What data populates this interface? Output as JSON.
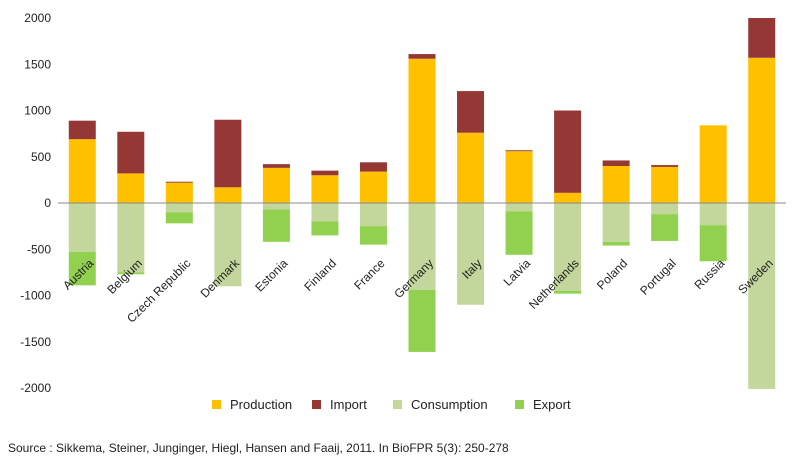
{
  "chart_data": {
    "type": "bar",
    "stacked": true,
    "title": "",
    "xlabel": "",
    "ylabel": "",
    "ylim": [
      -2000,
      2000
    ],
    "yticks": [
      2000,
      1500,
      1000,
      500,
      0,
      -500,
      -1000,
      -1500,
      -2000
    ],
    "grid": false,
    "legend_position": "bottom",
    "categories": [
      "Austria",
      "Belgium",
      "Czech Republic",
      "Denmark",
      "Estonia",
      "Finland",
      "France",
      "Germany",
      "Italy",
      "Latvia",
      "Netherlands",
      "Poland",
      "Portugal",
      "Russia",
      "Sweden"
    ],
    "series": [
      {
        "name": "Production",
        "color": "#ffc000",
        "values": [
          690,
          320,
          220,
          170,
          380,
          300,
          340,
          1560,
          760,
          560,
          110,
          400,
          390,
          840,
          1570
        ]
      },
      {
        "name": "Import",
        "color": "#953735",
        "values": [
          200,
          450,
          10,
          730,
          40,
          50,
          100,
          50,
          450,
          10,
          890,
          60,
          20,
          0,
          430
        ]
      },
      {
        "name": "Consumption",
        "color": "#c3d69b",
        "values": [
          -530,
          -750,
          -100,
          -900,
          -70,
          -200,
          -250,
          -940,
          -1100,
          -90,
          -950,
          -420,
          -120,
          -240,
          -2010
        ]
      },
      {
        "name": "Export",
        "color": "#92d050",
        "values": [
          -360,
          -20,
          -120,
          0,
          -350,
          -150,
          -200,
          -670,
          0,
          -470,
          -30,
          -40,
          -290,
          -390,
          0
        ]
      }
    ]
  },
  "source": "Source : Sikkema, Steiner, Junginger, Hiegl, Hansen and Faaij, 2011. In BioFPR 5(3): 250-278"
}
